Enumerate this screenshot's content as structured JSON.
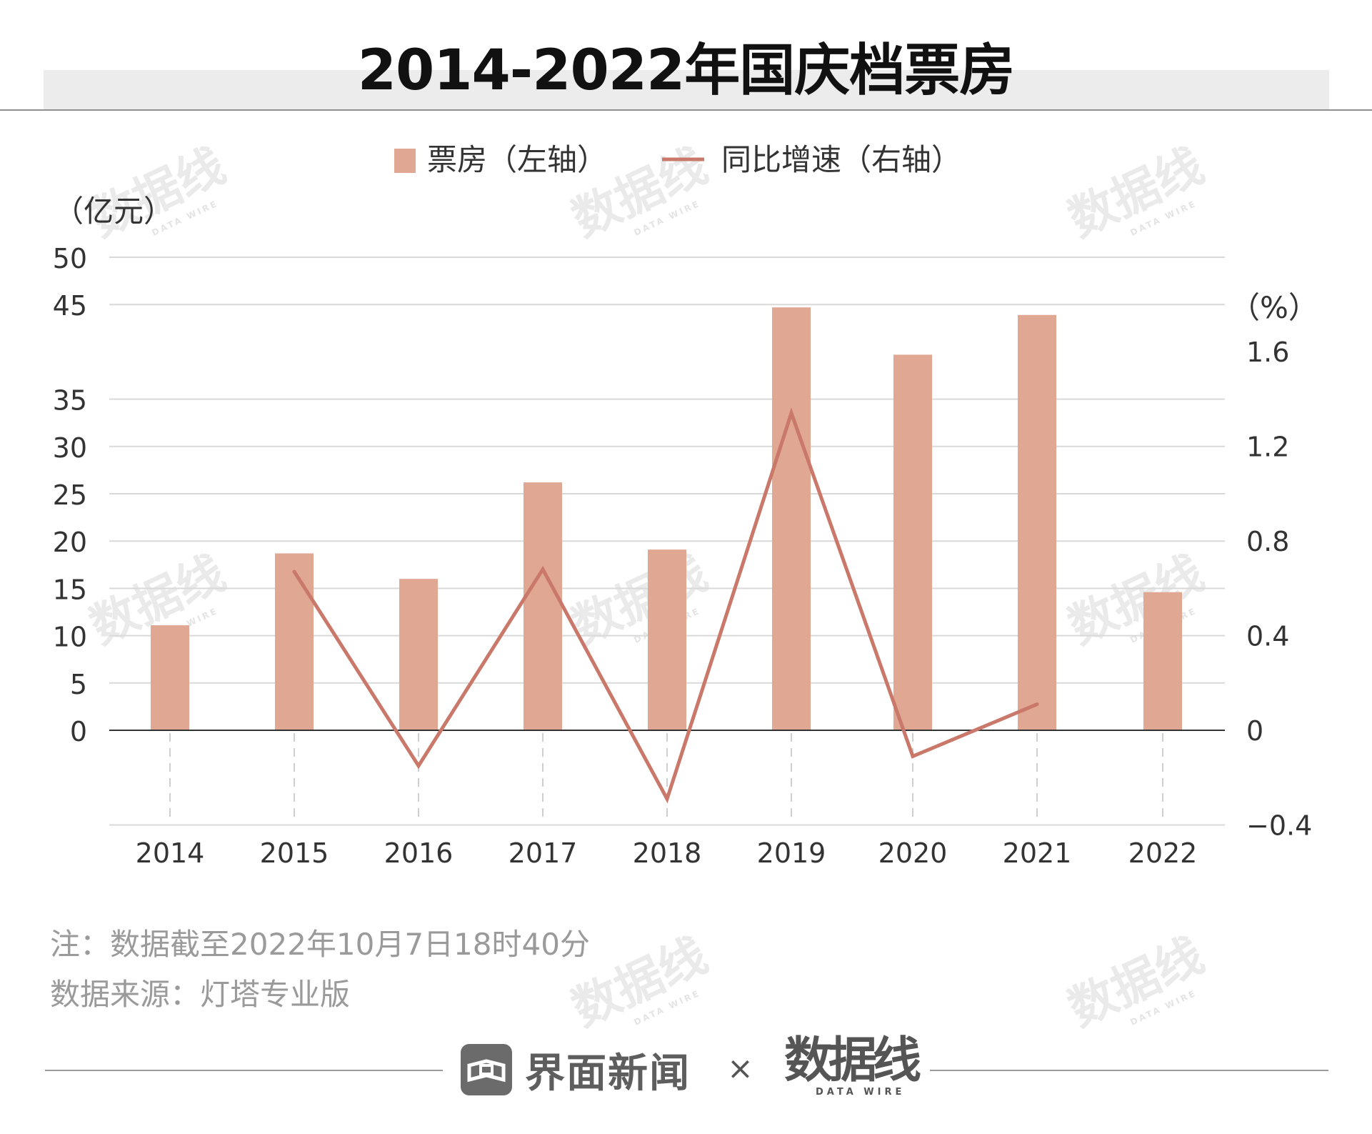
{
  "page": {
    "title": "2014-2022年国庆档票房",
    "note": "注：数据截至2022年10月7日18时40分",
    "source": "数据来源：灯塔专业版",
    "brand": "界面新闻",
    "times_sign": "×",
    "partner_logo": "数据线",
    "partner_logo_sub": "DATA WIRE",
    "watermark_text": "数据线",
    "watermark_sub": "DATA WIRE"
  },
  "colors": {
    "bar": "#e0a793",
    "line": "#c9786a",
    "grid": "#d9d9d9",
    "axis": "#333333",
    "tick_text": "#333333",
    "note_text": "#9a9a9a",
    "watermark": "#d9d9d9"
  },
  "chart_data": {
    "type": "bar",
    "title": "",
    "categories": [
      "2014",
      "2015",
      "2016",
      "2017",
      "2018",
      "2019",
      "2020",
      "2021",
      "2022"
    ],
    "series": [
      {
        "name": "票房（左轴）",
        "type": "bar",
        "axis": "left",
        "values": [
          11.1,
          18.7,
          16.0,
          26.2,
          19.1,
          44.7,
          39.7,
          43.9,
          14.6
        ]
      },
      {
        "name": "同比增速（右轴）",
        "type": "line",
        "axis": "right",
        "values": [
          null,
          0.67,
          -0.15,
          0.68,
          -0.29,
          1.34,
          -0.11,
          0.11,
          null
        ]
      }
    ],
    "y_left": {
      "label": "（亿元）",
      "lim": [
        0,
        50
      ],
      "ticks": [
        "0",
        "5",
        "10",
        "15",
        "20",
        "25",
        "30",
        "35",
        "45",
        "50"
      ]
    },
    "y_right": {
      "label": "（%）",
      "lim": [
        -0.4,
        1.6
      ],
      "ticks": [
        "-0.4",
        "0",
        "0.4",
        "0.8",
        "1.2",
        "1.6"
      ]
    },
    "xlabel": "",
    "grid": true,
    "legend": "top-center"
  }
}
